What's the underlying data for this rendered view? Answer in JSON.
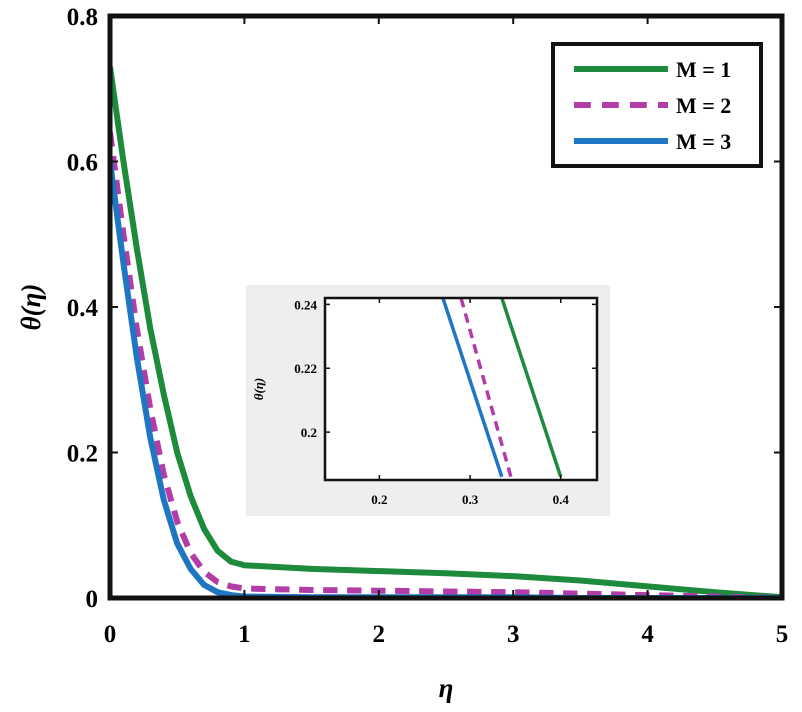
{
  "chart_data": [
    {
      "type": "line",
      "title": "",
      "xlabel": "η",
      "ylabel": "θ(η)",
      "xlim": [
        0,
        5
      ],
      "ylim": [
        0,
        0.8
      ],
      "xticks": [
        0,
        1,
        2,
        3,
        4,
        5
      ],
      "xtick_labels": [
        "0",
        "1",
        "2",
        "3",
        "4",
        "5"
      ],
      "yticks": [
        0,
        0.2,
        0.4,
        0.6,
        0.8
      ],
      "ytick_labels": [
        "0",
        "0.2",
        "0.4",
        "0.6",
        "0.8"
      ],
      "grid": false,
      "legend_position": "top-right",
      "series": [
        {
          "name": "M = 1",
          "color": "#1e8a3c",
          "dash": "solid",
          "x": [
            0,
            0.1,
            0.2,
            0.3,
            0.4,
            0.5,
            0.6,
            0.7,
            0.8,
            0.9,
            1.0,
            1.5,
            2.0,
            2.5,
            3.0,
            3.5,
            4.0,
            4.5,
            5.0
          ],
          "y": [
            0.73,
            0.6,
            0.48,
            0.37,
            0.28,
            0.2,
            0.14,
            0.095,
            0.065,
            0.05,
            0.045,
            0.04,
            0.037,
            0.034,
            0.03,
            0.024,
            0.016,
            0.008,
            0.001
          ]
        },
        {
          "name": "M = 2",
          "color": "#b23ca8",
          "dash": "dashed",
          "x": [
            0,
            0.1,
            0.2,
            0.3,
            0.4,
            0.5,
            0.6,
            0.7,
            0.8,
            0.9,
            1.0,
            1.5,
            2.0,
            2.5,
            3.0,
            3.5,
            4.0,
            4.5,
            5.0
          ],
          "y": [
            0.64,
            0.5,
            0.37,
            0.26,
            0.17,
            0.105,
            0.062,
            0.036,
            0.022,
            0.016,
            0.013,
            0.011,
            0.01,
            0.009,
            0.008,
            0.006,
            0.004,
            0.002,
            0.0
          ]
        },
        {
          "name": "M = 3",
          "color": "#1f77c4",
          "dash": "solid",
          "x": [
            0,
            0.1,
            0.2,
            0.3,
            0.4,
            0.5,
            0.6,
            0.7,
            0.8,
            0.9,
            1.0,
            1.5,
            2.0,
            2.5,
            3.0,
            3.5,
            4.0,
            4.5,
            5.0
          ],
          "y": [
            0.6,
            0.46,
            0.33,
            0.22,
            0.135,
            0.075,
            0.04,
            0.018,
            0.008,
            0.004,
            0.002,
            0.001,
            0.001,
            0.001,
            0.001,
            0.0,
            0.0,
            0.0,
            0.0
          ]
        }
      ]
    },
    {
      "type": "line",
      "title": "",
      "xlabel": "",
      "ylabel": "θ(η)",
      "xlim": [
        0.14,
        0.44
      ],
      "ylim": [
        0.185,
        0.242
      ],
      "xticks": [
        0.2,
        0.3,
        0.4
      ],
      "xtick_labels": [
        "0.2",
        "0.3",
        "0.4"
      ],
      "yticks": [
        0.2,
        0.22,
        0.24
      ],
      "ytick_labels": [
        "0.2",
        "0.22",
        "0.24"
      ],
      "grid": false,
      "legend_position": "none",
      "series": [
        {
          "name": "M = 1",
          "color": "#1e8a3c",
          "dash": "solid",
          "x": [
            0.335,
            0.4
          ],
          "y": [
            0.242,
            0.186
          ]
        },
        {
          "name": "M = 2",
          "color": "#b23ca8",
          "dash": "dashed",
          "x": [
            0.29,
            0.345
          ],
          "y": [
            0.242,
            0.186
          ]
        },
        {
          "name": "M = 3",
          "color": "#1f77c4",
          "dash": "solid",
          "x": [
            0.27,
            0.335
          ],
          "y": [
            0.242,
            0.186
          ]
        }
      ]
    }
  ]
}
